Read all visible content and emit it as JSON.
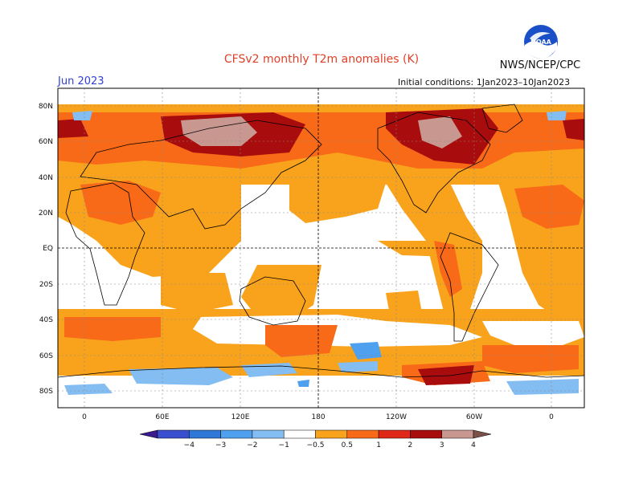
{
  "title": "CFSv2 monthly T2m anomalies (K)",
  "agency": "NWS/NCEP/CPC",
  "logo_text": "NOAA",
  "valid_month": "Jun 2023",
  "initial_conditions": "Initial conditions: 1Jan2023–10Jan2023",
  "lat_labels": [
    "80N",
    "60N",
    "40N",
    "20N",
    "EQ",
    "20S",
    "40S",
    "60S",
    "80S"
  ],
  "lon_labels": [
    "0",
    "60E",
    "120E",
    "180",
    "120W",
    "60W",
    "0"
  ],
  "colorbar": {
    "labels": [
      "−4",
      "−3",
      "−2",
      "−1",
      "−0.5",
      "0.5",
      "1",
      "2",
      "3",
      "4"
    ],
    "colors": [
      "#3a1a8c",
      "#3a4fd0",
      "#2f78d8",
      "#4fa0ee",
      "#84bdf2",
      "#ffffff",
      "#f9a21c",
      "#f86a18",
      "#e02818",
      "#a80c0c",
      "#c89890",
      "#7a5048"
    ]
  }
}
